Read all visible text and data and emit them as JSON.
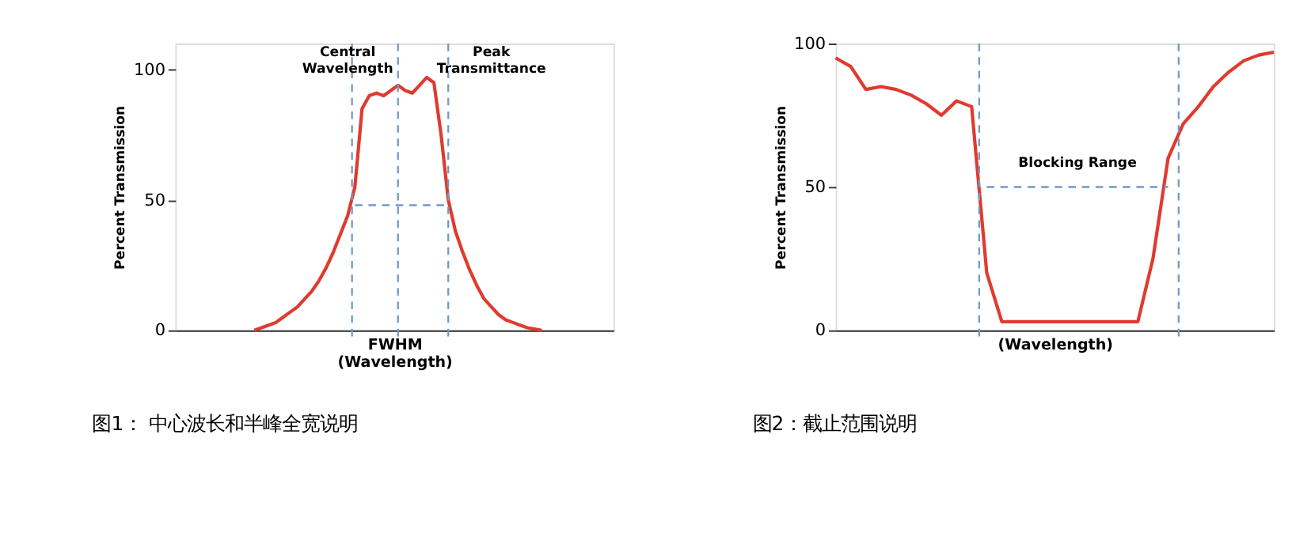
{
  "chart_data": [
    {
      "type": "line",
      "categories": [
        null,
        null,
        null,
        null,
        null,
        null,
        null,
        null,
        null,
        null,
        null,
        null,
        null,
        null,
        null,
        null,
        null,
        null,
        null,
        null,
        null,
        null,
        null,
        null,
        null,
        null,
        null,
        null,
        null,
        null,
        null,
        null,
        null,
        null,
        null,
        null,
        null,
        null,
        null,
        null,
        null,
        null,
        null,
        null,
        null,
        null,
        null,
        null,
        null,
        null,
        null,
        null,
        null,
        null,
        null,
        null,
        null,
        null,
        null,
        null,
        null,
        null
      ],
      "series": [
        {
          "color": "#e03a2f",
          "values": [
            null,
            null,
            null,
            null,
            null,
            null,
            null,
            null,
            null,
            null,
            null,
            0,
            1,
            2,
            3,
            5,
            7,
            9,
            12,
            15,
            19,
            24,
            30,
            37,
            44,
            55,
            85,
            90,
            91,
            90,
            92,
            94,
            92,
            91,
            94,
            97,
            95,
            75,
            50,
            38,
            30,
            23,
            17,
            12,
            9,
            6,
            4,
            3,
            2,
            1,
            0.5,
            0,
            null,
            null,
            null,
            null,
            null,
            null,
            null,
            null,
            null,
            null
          ]
        },
        {
          "color": "#6f9bc8",
          "line_style": "dashed",
          "values": [
            null,
            null,
            null,
            null,
            null,
            null,
            null,
            null,
            null,
            null,
            null,
            null,
            null,
            null,
            null,
            null,
            null,
            null,
            null,
            null,
            null,
            null,
            null,
            null,
            null,
            48,
            48,
            48,
            48,
            48,
            48,
            48,
            48,
            48,
            48,
            48,
            48,
            48,
            48,
            null,
            null,
            null,
            null,
            null,
            null,
            null,
            null,
            null,
            null,
            null,
            null,
            null,
            null,
            null,
            null,
            null,
            null,
            null,
            null,
            null,
            null,
            null
          ]
        }
      ],
      "ylim": [
        0,
        110
      ],
      "yticks": [
        0,
        50,
        100
      ],
      "ylabel": "Percent Transmission",
      "xlabel": "FWHM\n(Wavelength)",
      "tick_labels": "y",
      "grid": false,
      "annotations": [
        "Central\nWavelength",
        "Peak\nTransmittance",
        "图1： 中心波长和半峰全宽说明"
      ]
    },
    {
      "type": "line",
      "categories": [
        null,
        null,
        null,
        null,
        null,
        null,
        null,
        null,
        null,
        null,
        null,
        null,
        null,
        null,
        null,
        null,
        null,
        null,
        null,
        null,
        null,
        null,
        null,
        null,
        null,
        null,
        null,
        null,
        null,
        null
      ],
      "series": [
        {
          "color": "#e03a2f",
          "values": [
            95,
            92,
            84,
            85,
            84,
            82,
            79,
            75,
            80,
            78,
            20,
            3,
            3,
            3,
            3,
            3,
            3,
            3,
            3,
            3,
            3,
            25,
            60,
            72,
            78,
            85,
            90,
            94,
            96,
            97
          ]
        },
        {
          "color": "#6f9bc8",
          "line_style": "dashed",
          "values": [
            null,
            null,
            null,
            null,
            null,
            null,
            null,
            null,
            null,
            null,
            50,
            50,
            50,
            50,
            50,
            50,
            50,
            50,
            50,
            50,
            50,
            50,
            50,
            null,
            null,
            null,
            null,
            null,
            null,
            null
          ]
        }
      ],
      "ylim": [
        0,
        100
      ],
      "yticks": [
        0,
        50,
        100
      ],
      "ylabel": "Percent Transmission",
      "xlabel": "(Wavelength)",
      "tick_labels": "y",
      "grid": false,
      "annotations": [
        "Blocking Range",
        "图2：截止范围说明"
      ]
    }
  ]
}
